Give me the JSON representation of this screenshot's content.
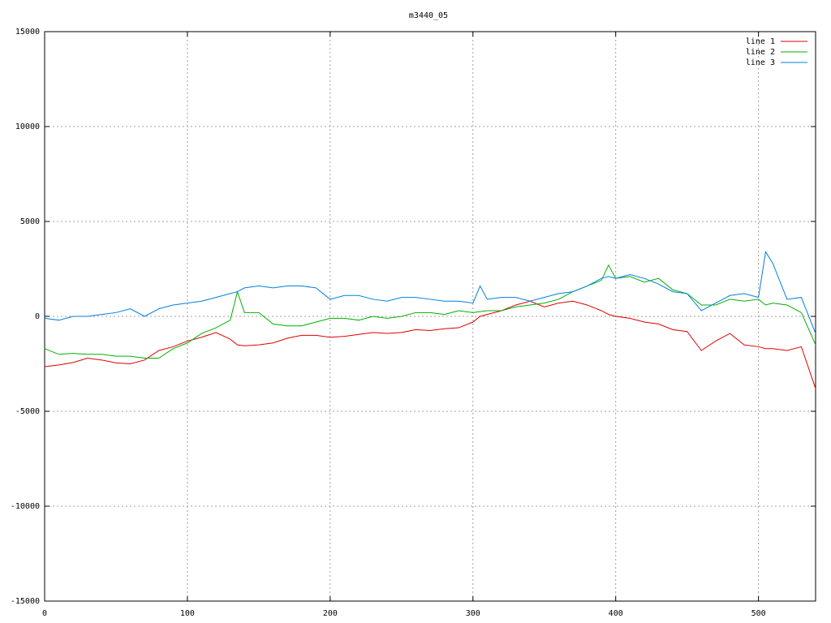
{
  "chart_data": {
    "type": "line",
    "title": "m3440_05",
    "x": [
      0,
      10,
      20,
      30,
      40,
      50,
      60,
      70,
      80,
      90,
      100,
      110,
      120,
      130,
      135,
      140,
      150,
      160,
      170,
      180,
      190,
      200,
      210,
      220,
      230,
      240,
      250,
      260,
      270,
      280,
      290,
      300,
      305,
      310,
      320,
      330,
      340,
      350,
      360,
      370,
      380,
      390,
      395,
      400,
      410,
      420,
      430,
      440,
      450,
      460,
      470,
      480,
      490,
      500,
      505,
      510,
      520,
      530,
      540
    ],
    "series": [
      {
        "name": "line 1",
        "color": "#e00000",
        "values": [
          -2650,
          -2560,
          -2430,
          -2200,
          -2300,
          -2450,
          -2500,
          -2300,
          -1800,
          -1600,
          -1300,
          -1100,
          -850,
          -1200,
          -1500,
          -1550,
          -1500,
          -1400,
          -1150,
          -1000,
          -1000,
          -1100,
          -1050,
          -950,
          -850,
          -900,
          -850,
          -700,
          -750,
          -650,
          -600,
          -300,
          0,
          100,
          300,
          600,
          800,
          500,
          700,
          800,
          600,
          300,
          100,
          0,
          -100,
          -300,
          -400,
          -700,
          -800,
          -1800,
          -1300,
          -900,
          -1500,
          -1600,
          -1700,
          -1700,
          -1800,
          -1600,
          -3800
        ]
      },
      {
        "name": "line 2",
        "color": "#00b000",
        "values": [
          -1700,
          -2000,
          -1950,
          -2000,
          -2000,
          -2100,
          -2100,
          -2200,
          -2200,
          -1700,
          -1400,
          -900,
          -600,
          -200,
          1300,
          200,
          200,
          -400,
          -500,
          -500,
          -300,
          -100,
          -100,
          -200,
          0,
          -100,
          0,
          200,
          200,
          100,
          300,
          200,
          250,
          300,
          300,
          500,
          600,
          700,
          900,
          1300,
          1600,
          1900,
          2700,
          2000,
          2100,
          1800,
          2000,
          1400,
          1200,
          600,
          600,
          900,
          800,
          900,
          600,
          700,
          600,
          200,
          -1500
        ]
      },
      {
        "name": "line 3",
        "color": "#0080e0",
        "values": [
          -100,
          -200,
          0,
          0,
          100,
          200,
          400,
          0,
          400,
          600,
          700,
          800,
          1000,
          1200,
          1300,
          1500,
          1600,
          1500,
          1600,
          1600,
          1500,
          900,
          1100,
          1100,
          900,
          800,
          1000,
          1000,
          900,
          800,
          800,
          700,
          1600,
          900,
          1000,
          1000,
          800,
          1000,
          1200,
          1300,
          1600,
          2000,
          2100,
          2000,
          2200,
          2000,
          1700,
          1300,
          1200,
          300,
          700,
          1100,
          1200,
          1000,
          3400,
          2800,
          900,
          1000,
          -900
        ]
      }
    ],
    "xlim": [
      0,
      540
    ],
    "xticks": [
      0,
      100,
      200,
      300,
      400,
      500
    ],
    "ylim": [
      -15000,
      15000
    ],
    "yticks": [
      -15000,
      -10000,
      -5000,
      0,
      5000,
      10000,
      15000
    ],
    "grid": true,
    "legend": "top-right"
  }
}
